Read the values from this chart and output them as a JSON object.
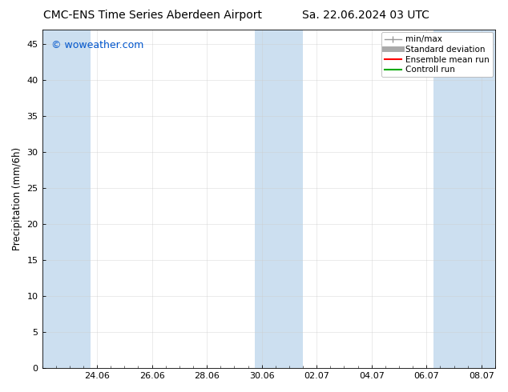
{
  "title_left": "CMC-ENS Time Series Aberdeen Airport",
  "title_right": "Sa. 22.06.2024 03 UTC",
  "ylabel": "Precipitation (mm/6h)",
  "watermark": "© woweather.com",
  "watermark_color": "#0055cc",
  "ylim": [
    0,
    47
  ],
  "yticks": [
    0,
    5,
    10,
    15,
    20,
    25,
    30,
    35,
    40,
    45
  ],
  "xtick_labels": [
    "24.06",
    "26.06",
    "28.06",
    "30.06",
    "02.07",
    "04.07",
    "06.07",
    "08.07"
  ],
  "xtick_positions_days": [
    2,
    4,
    6,
    8,
    10,
    12,
    14,
    16
  ],
  "total_days": 16.5,
  "bg_color": "#ffffff",
  "plot_bg_color": "#ffffff",
  "shaded_bands": [
    {
      "start_day": 0.0,
      "end_day": 1.75,
      "color": "#ccdff0"
    },
    {
      "start_day": 7.75,
      "end_day": 9.5,
      "color": "#ccdff0"
    },
    {
      "start_day": 14.25,
      "end_day": 16.5,
      "color": "#ccdff0"
    }
  ],
  "legend_entries": [
    {
      "label": "min/max",
      "color": "#999999",
      "lw": 1.0
    },
    {
      "label": "Standard deviation",
      "color": "#aaaaaa",
      "lw": 5
    },
    {
      "label": "Ensemble mean run",
      "color": "#ff0000",
      "lw": 1.5
    },
    {
      "label": "Controll run",
      "color": "#00aa00",
      "lw": 1.5
    }
  ],
  "title_fontsize": 10,
  "tick_label_fontsize": 8,
  "ylabel_fontsize": 8.5,
  "legend_fontsize": 7.5,
  "watermark_fontsize": 9,
  "grid_color": "#cccccc",
  "spine_color": "#000000",
  "minor_tick_interval": 0.5
}
